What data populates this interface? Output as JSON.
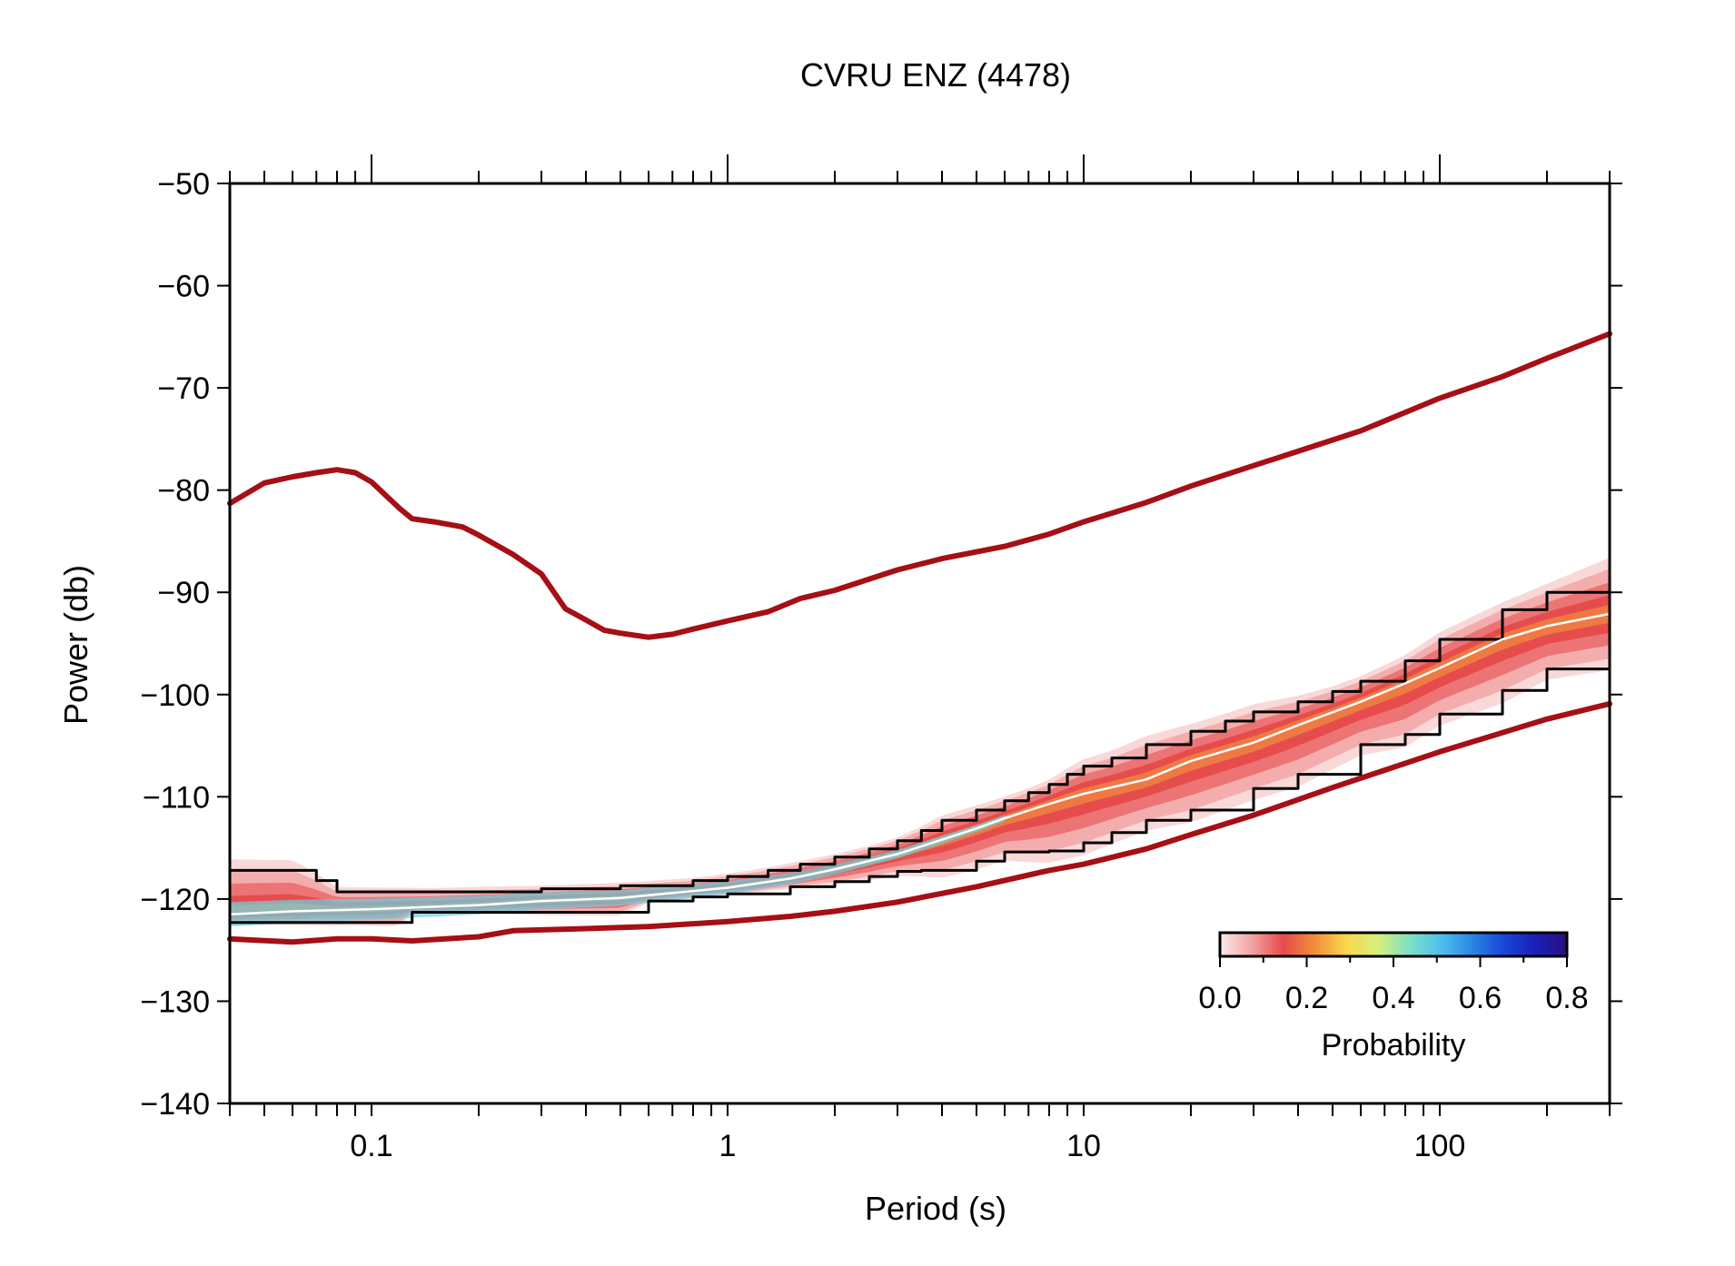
{
  "chart_data": {
    "type": "line",
    "title": "CVRU ENZ (4478)",
    "xlabel": "Period (s)",
    "ylabel": "Power (db)",
    "xscale": "log",
    "xlim": [
      0.04,
      300
    ],
    "ylim": [
      -140,
      -50
    ],
    "x_ticks": [
      0.1,
      1,
      10,
      100
    ],
    "x_tick_labels": [
      "0.1",
      "1",
      "10",
      "100"
    ],
    "y_ticks": [
      -50,
      -60,
      -70,
      -80,
      -90,
      -100,
      -110,
      -120,
      -130,
      -140
    ],
    "y_tick_labels": [
      "−50",
      "−60",
      "−70",
      "−80",
      "−90",
      "−100",
      "−110",
      "−120",
      "−130",
      "−140"
    ],
    "grid": false,
    "legend": "none",
    "colors": {
      "model": "#a50f15",
      "percentile": "#000000",
      "mode": "#ffffff"
    },
    "series": [
      {
        "role": "model-high",
        "x": [
          0.04,
          0.05,
          0.06,
          0.07,
          0.08,
          0.09,
          0.1,
          0.12,
          0.13,
          0.15,
          0.18,
          0.2,
          0.25,
          0.3,
          0.35,
          0.4,
          0.45,
          0.5,
          0.6,
          0.7,
          0.8,
          1,
          1.3,
          1.6,
          2,
          3,
          4,
          6,
          8,
          10,
          15,
          20,
          30,
          40,
          60,
          100,
          150,
          200,
          300
        ],
        "y": [
          -81.3,
          -79.3,
          -78.7,
          -78.3,
          -78,
          -78.3,
          -79.2,
          -81.8,
          -82.8,
          -83.1,
          -83.6,
          -84.4,
          -86.3,
          -88.2,
          -91.6,
          -92.7,
          -93.7,
          -94,
          -94.4,
          -94.1,
          -93.6,
          -92.8,
          -91.9,
          -90.6,
          -89.8,
          -87.8,
          -86.7,
          -85.5,
          -84.3,
          -83.1,
          -81.2,
          -79.6,
          -77.6,
          -76.2,
          -74.2,
          -71,
          -68.9,
          -67.1,
          -64.7
        ]
      },
      {
        "role": "model-low",
        "x": [
          0.04,
          0.06,
          0.08,
          0.1,
          0.13,
          0.2,
          0.25,
          0.4,
          0.6,
          1,
          1.5,
          2,
          3,
          5,
          8,
          10,
          15,
          20,
          30,
          50,
          100,
          200,
          300
        ],
        "y": [
          -123.9,
          -124.2,
          -123.9,
          -123.9,
          -124.1,
          -123.7,
          -123.1,
          -122.9,
          -122.7,
          -122.2,
          -121.7,
          -121.2,
          -120.3,
          -118.8,
          -117.2,
          -116.6,
          -115.1,
          -113.7,
          -111.8,
          -109.1,
          -105.6,
          -102.4,
          -100.9
        ]
      },
      {
        "role": "percentile-upper",
        "x": [
          0.04,
          0.06,
          0.07,
          0.08,
          0.15,
          0.3,
          0.5,
          0.8,
          1,
          1.3,
          1.6,
          2,
          2.5,
          3,
          3.5,
          4,
          5,
          6,
          7,
          8,
          9,
          10,
          12,
          15,
          20,
          25,
          30,
          40,
          50,
          60,
          80,
          100,
          150,
          200,
          300
        ],
        "y": [
          -117.2,
          -117.2,
          -118.2,
          -119.3,
          -119.3,
          -119.0,
          -118.7,
          -118.2,
          -117.8,
          -117.2,
          -116.6,
          -115.9,
          -115.1,
          -114.3,
          -113.3,
          -112.3,
          -111.3,
          -110.4,
          -109.6,
          -108.8,
          -107.8,
          -107.0,
          -106.2,
          -104.9,
          -103.6,
          -102.6,
          -101.7,
          -100.7,
          -99.7,
          -98.7,
          -96.7,
          -94.6,
          -91.7,
          -90.0,
          -87.7
        ]
      },
      {
        "role": "percentile-lower",
        "x": [
          0.04,
          0.12,
          0.13,
          0.3,
          0.5,
          0.6,
          0.8,
          1,
          1.5,
          2,
          2.5,
          3,
          3.5,
          4,
          5,
          6,
          7,
          8,
          10,
          12,
          15,
          20,
          30,
          40,
          60,
          80,
          100,
          150,
          200,
          300
        ],
        "y": [
          -122.3,
          -122.3,
          -121.3,
          -121.3,
          -121.3,
          -120.2,
          -119.8,
          -119.5,
          -118.8,
          -118.3,
          -117.8,
          -117.3,
          -117.2,
          -117.2,
          -116.3,
          -115.4,
          -115.4,
          -115.3,
          -114.5,
          -113.5,
          -112.3,
          -111.3,
          -109.2,
          -107.8,
          -104.9,
          -103.9,
          -101.9,
          -99.6,
          -97.5,
          -96.5
        ]
      },
      {
        "role": "mode",
        "x": [
          0.04,
          0.06,
          0.1,
          0.2,
          0.3,
          0.5,
          1,
          1.5,
          2,
          3,
          4,
          5,
          6,
          8,
          10,
          15,
          20,
          30,
          40,
          60,
          80,
          100,
          150,
          200,
          300
        ],
        "y": [
          -121.5,
          -121.2,
          -121.0,
          -120.6,
          -120.2,
          -119.9,
          -118.9,
          -118.0,
          -117.1,
          -115.6,
          -114.2,
          -113.1,
          -112.1,
          -110.7,
          -109.7,
          -108.3,
          -106.5,
          -104.7,
          -103.0,
          -100.7,
          -98.9,
          -97.4,
          -94.6,
          -93.3,
          -92.1
        ]
      }
    ],
    "colorbar": {
      "label": "Probability",
      "ticks": [
        "0.0",
        "0.2",
        "0.4",
        "0.6",
        "0.8"
      ],
      "range": [
        0,
        0.8
      ],
      "colors": [
        "#fbeaea",
        "#f4a3a3",
        "#e8494a",
        "#f28e3a",
        "#fad84c",
        "#d6f07a",
        "#7fe0c4",
        "#4fc0ee",
        "#2a86e4",
        "#1846d9",
        "#1a1fb8",
        "#2a0e80"
      ]
    }
  }
}
